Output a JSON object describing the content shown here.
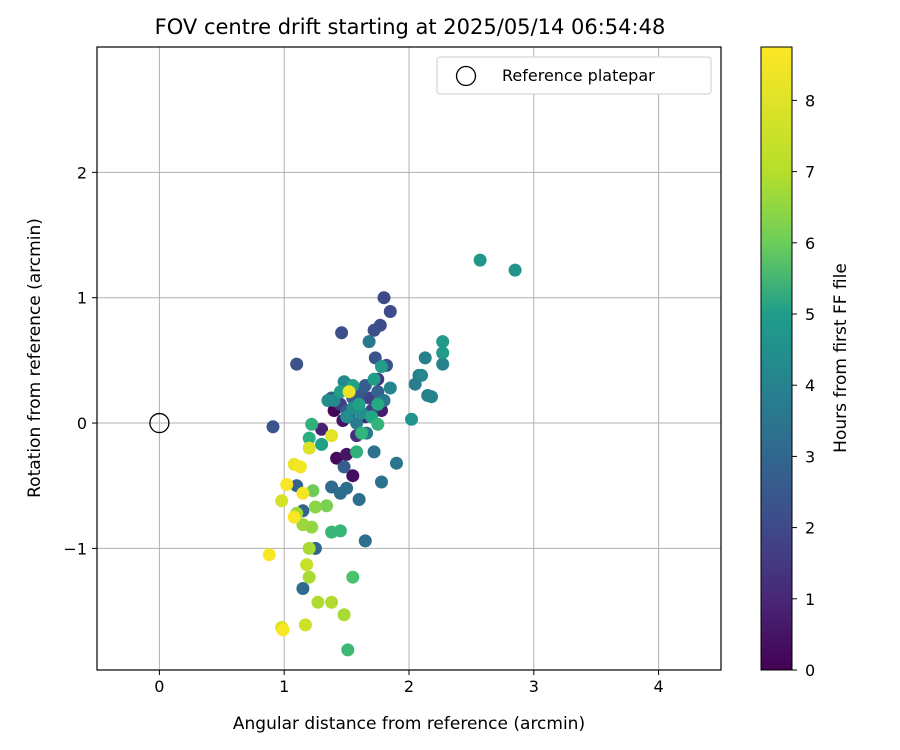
{
  "chart_data": {
    "type": "scatter",
    "title": "FOV centre drift starting at 2025/05/14 06:54:48",
    "xlabel": "Angular distance from reference (arcmin)",
    "ylabel": "Rotation from reference (arcmin)",
    "xlim": [
      -0.5,
      4.5
    ],
    "ylim": [
      -1.97,
      3.0
    ],
    "xticks": [
      0,
      1,
      2,
      3,
      4
    ],
    "yticks": [
      -1,
      0,
      1,
      2
    ],
    "grid": true,
    "legend": {
      "placement": "top-right",
      "entries": [
        "Reference platepar"
      ]
    },
    "reference_point": {
      "x": 0,
      "y": 0
    },
    "colorbar": {
      "label": "Hours from first FF file",
      "range": [
        0,
        8.75
      ],
      "ticks": [
        0,
        1,
        2,
        3,
        4,
        5,
        6,
        7,
        8
      ],
      "colormap": "viridis"
    },
    "points": [
      {
        "x": 1.4,
        "y": 0.1,
        "c": 0.1
      },
      {
        "x": 1.42,
        "y": -0.28,
        "c": 0.2
      },
      {
        "x": 1.55,
        "y": -0.42,
        "c": 0.3
      },
      {
        "x": 1.47,
        "y": 0.02,
        "c": 0.4
      },
      {
        "x": 1.5,
        "y": -0.25,
        "c": 0.5
      },
      {
        "x": 1.6,
        "y": 0.2,
        "c": 0.6
      },
      {
        "x": 1.78,
        "y": 0.1,
        "c": 0.7
      },
      {
        "x": 1.3,
        "y": -0.05,
        "c": 0.8
      },
      {
        "x": 1.52,
        "y": 0.3,
        "c": 1.0
      },
      {
        "x": 1.65,
        "y": 0.05,
        "c": 1.1
      },
      {
        "x": 1.58,
        "y": -0.1,
        "c": 1.2
      },
      {
        "x": 1.75,
        "y": 0.35,
        "c": 1.3
      },
      {
        "x": 1.45,
        "y": 0.15,
        "c": 1.5
      },
      {
        "x": 1.7,
        "y": 0.1,
        "c": 1.6
      },
      {
        "x": 1.68,
        "y": 0.2,
        "c": 1.7
      },
      {
        "x": 1.8,
        "y": 1.0,
        "c": 1.9
      },
      {
        "x": 1.85,
        "y": 0.89,
        "c": 2.0
      },
      {
        "x": 1.77,
        "y": 0.78,
        "c": 2.0
      },
      {
        "x": 1.72,
        "y": 0.74,
        "c": 2.1
      },
      {
        "x": 1.46,
        "y": 0.72,
        "c": 2.1
      },
      {
        "x": 1.1,
        "y": 0.47,
        "c": 2.2
      },
      {
        "x": 1.82,
        "y": 0.46,
        "c": 2.2
      },
      {
        "x": 1.73,
        "y": 0.52,
        "c": 2.3
      },
      {
        "x": 0.91,
        "y": -0.03,
        "c": 2.3
      },
      {
        "x": 1.5,
        "y": 0.1,
        "c": 2.4
      },
      {
        "x": 1.62,
        "y": 0.25,
        "c": 2.4
      },
      {
        "x": 1.48,
        "y": -0.35,
        "c": 2.5
      },
      {
        "x": 1.55,
        "y": 0.2,
        "c": 2.5
      },
      {
        "x": 1.38,
        "y": 0.2,
        "c": 2.6
      },
      {
        "x": 1.65,
        "y": 0.3,
        "c": 2.6
      },
      {
        "x": 1.75,
        "y": 0.25,
        "c": 2.7
      },
      {
        "x": 1.52,
        "y": 0.05,
        "c": 2.7
      },
      {
        "x": 1.1,
        "y": -0.5,
        "c": 2.8
      },
      {
        "x": 1.15,
        "y": -0.7,
        "c": 2.8
      },
      {
        "x": 1.25,
        "y": -1.0,
        "c": 2.9
      },
      {
        "x": 1.15,
        "y": -1.32,
        "c": 3.0
      },
      {
        "x": 1.38,
        "y": -0.51,
        "c": 3.0
      },
      {
        "x": 1.45,
        "y": -0.56,
        "c": 3.1
      },
      {
        "x": 1.5,
        "y": -0.52,
        "c": 3.1
      },
      {
        "x": 1.6,
        "y": -0.61,
        "c": 3.2
      },
      {
        "x": 1.65,
        "y": -0.94,
        "c": 3.2
      },
      {
        "x": 1.72,
        "y": -0.23,
        "c": 3.3
      },
      {
        "x": 1.78,
        "y": -0.47,
        "c": 3.3
      },
      {
        "x": 1.9,
        "y": -0.32,
        "c": 3.4
      },
      {
        "x": 1.68,
        "y": 0.65,
        "c": 3.5
      },
      {
        "x": 1.8,
        "y": 0.18,
        "c": 3.5
      },
      {
        "x": 1.58,
        "y": 0.0,
        "c": 3.6
      },
      {
        "x": 1.66,
        "y": -0.08,
        "c": 3.6
      },
      {
        "x": 2.08,
        "y": 0.38,
        "c": 3.7
      },
      {
        "x": 2.05,
        "y": 0.31,
        "c": 3.7
      },
      {
        "x": 2.13,
        "y": 0.52,
        "c": 3.8
      },
      {
        "x": 2.15,
        "y": 0.22,
        "c": 3.8
      },
      {
        "x": 2.18,
        "y": 0.21,
        "c": 3.9
      },
      {
        "x": 2.27,
        "y": 0.47,
        "c": 3.9
      },
      {
        "x": 2.1,
        "y": 0.38,
        "c": 4.0
      },
      {
        "x": 1.85,
        "y": 0.28,
        "c": 4.0
      },
      {
        "x": 1.4,
        "y": 0.18,
        "c": 4.1
      },
      {
        "x": 1.48,
        "y": 0.33,
        "c": 4.1
      },
      {
        "x": 1.35,
        "y": 0.18,
        "c": 4.2
      },
      {
        "x": 1.5,
        "y": 0.05,
        "c": 4.2
      },
      {
        "x": 1.55,
        "y": 0.12,
        "c": 4.3
      },
      {
        "x": 1.62,
        "y": 0.08,
        "c": 4.3
      },
      {
        "x": 2.85,
        "y": 1.22,
        "c": 4.5
      },
      {
        "x": 2.57,
        "y": 1.3,
        "c": 4.6
      },
      {
        "x": 2.02,
        "y": 0.03,
        "c": 4.5
      },
      {
        "x": 2.27,
        "y": 0.56,
        "c": 4.7
      },
      {
        "x": 2.27,
        "y": 0.65,
        "c": 4.7
      },
      {
        "x": 1.78,
        "y": 0.45,
        "c": 4.8
      },
      {
        "x": 1.72,
        "y": 0.35,
        "c": 4.8
      },
      {
        "x": 1.3,
        "y": -0.17,
        "c": 4.9
      },
      {
        "x": 1.45,
        "y": 0.25,
        "c": 4.9
      },
      {
        "x": 1.55,
        "y": 0.3,
        "c": 5.0
      },
      {
        "x": 1.6,
        "y": 0.15,
        "c": 5.0
      },
      {
        "x": 1.7,
        "y": 0.05,
        "c": 5.2
      },
      {
        "x": 1.75,
        "y": 0.15,
        "c": 5.3
      },
      {
        "x": 1.2,
        "y": -0.12,
        "c": 5.5
      },
      {
        "x": 1.22,
        "y": -0.01,
        "c": 5.6
      },
      {
        "x": 1.58,
        "y": -0.23,
        "c": 5.6
      },
      {
        "x": 1.62,
        "y": -0.08,
        "c": 5.7
      },
      {
        "x": 1.75,
        "y": -0.01,
        "c": 5.7
      },
      {
        "x": 1.45,
        "y": -0.86,
        "c": 5.8
      },
      {
        "x": 1.38,
        "y": -0.87,
        "c": 5.8
      },
      {
        "x": 1.51,
        "y": -1.81,
        "c": 5.9
      },
      {
        "x": 1.55,
        "y": -1.23,
        "c": 6.2
      },
      {
        "x": 1.23,
        "y": -0.54,
        "c": 6.8
      },
      {
        "x": 1.34,
        "y": -0.66,
        "c": 7.0
      },
      {
        "x": 1.25,
        "y": -0.67,
        "c": 7.2
      },
      {
        "x": 1.22,
        "y": -0.83,
        "c": 7.3
      },
      {
        "x": 1.15,
        "y": -0.81,
        "c": 7.4
      },
      {
        "x": 1.1,
        "y": -0.72,
        "c": 7.5
      },
      {
        "x": 1.2,
        "y": -1.0,
        "c": 7.6
      },
      {
        "x": 1.2,
        "y": -1.23,
        "c": 7.6
      },
      {
        "x": 1.27,
        "y": -1.43,
        "c": 7.7
      },
      {
        "x": 1.38,
        "y": -1.43,
        "c": 7.7
      },
      {
        "x": 1.48,
        "y": -1.53,
        "c": 7.6
      },
      {
        "x": 1.18,
        "y": -1.13,
        "c": 8.0
      },
      {
        "x": 1.17,
        "y": -1.61,
        "c": 8.1
      },
      {
        "x": 0.98,
        "y": -1.63,
        "c": 8.2
      },
      {
        "x": 0.98,
        "y": -0.62,
        "c": 8.2
      },
      {
        "x": 1.2,
        "y": -0.2,
        "c": 8.3
      },
      {
        "x": 1.38,
        "y": -0.1,
        "c": 8.4
      },
      {
        "x": 1.52,
        "y": 0.25,
        "c": 8.5
      },
      {
        "x": 1.08,
        "y": -0.33,
        "c": 8.5
      },
      {
        "x": 1.13,
        "y": -0.35,
        "c": 8.6
      },
      {
        "x": 1.15,
        "y": -0.56,
        "c": 8.6
      },
      {
        "x": 1.02,
        "y": -0.49,
        "c": 8.7
      },
      {
        "x": 1.08,
        "y": -0.75,
        "c": 8.7
      },
      {
        "x": 0.88,
        "y": -1.05,
        "c": 8.7
      },
      {
        "x": 0.99,
        "y": -1.65,
        "c": 8.7
      }
    ]
  }
}
